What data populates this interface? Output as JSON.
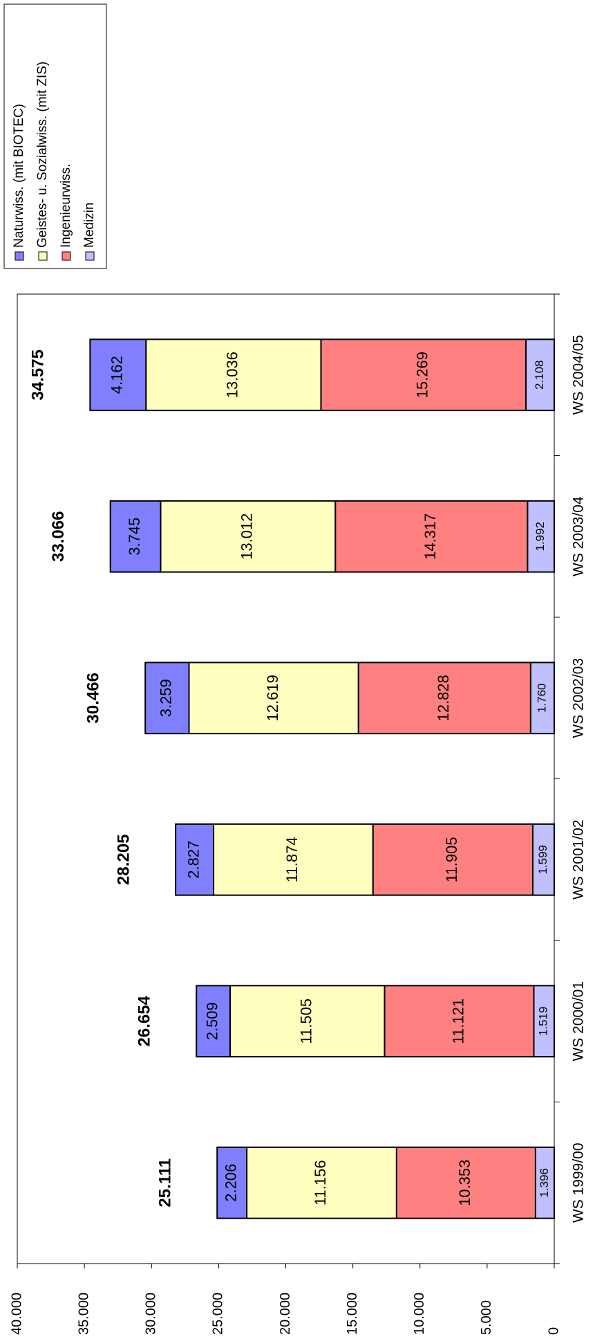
{
  "chart_data": {
    "type": "stacked_bar",
    "categories": [
      "WS 1999/00",
      "WS 2000/01",
      "WS 2001/02",
      "WS 2002/03",
      "WS 2003/04",
      "WS 2004/05"
    ],
    "series": [
      {
        "name": "Naturwiss. (mit BIOTEC)",
        "color": "#8080ff",
        "values": [
          2206,
          2509,
          2827,
          3259,
          3745,
          4162
        ],
        "value_labels": [
          "2.206",
          "2.509",
          "2.827",
          "3.259",
          "3.745",
          "4.162"
        ]
      },
      {
        "name": "Geistes- u. Sozialwiss. (mit ZIS)",
        "color": "#ffffc0",
        "values": [
          11156,
          11505,
          11874,
          12619,
          13012,
          13036
        ],
        "value_labels": [
          "11.156",
          "11.505",
          "11.874",
          "12.619",
          "13.012",
          "13.036"
        ]
      },
      {
        "name": "Ingenieurwiss.",
        "color": "#ff8080",
        "values": [
          10353,
          11121,
          11905,
          12828,
          14317,
          15269
        ],
        "value_labels": [
          "10.353",
          "11.121",
          "11.905",
          "12.828",
          "14.317",
          "15.269"
        ]
      },
      {
        "name": "Medizin",
        "color": "#c0c0ff",
        "values": [
          1396,
          1519,
          1599,
          1760,
          1992,
          2108
        ],
        "value_labels": [
          "1.396",
          "1.519",
          "1.599",
          "1.760",
          "1.992",
          "2.108"
        ]
      }
    ],
    "totals": {
      "values": [
        25111,
        26654,
        28205,
        30466,
        33066,
        34575
      ],
      "value_labels": [
        "25.111",
        "26.654",
        "28.205",
        "30.466",
        "33.066",
        "34.575"
      ]
    },
    "ylim": [
      0,
      40000
    ],
    "yticks": [
      0,
      {
        "value": 5000,
        "label": "5.000"
      },
      {
        "value": 10000,
        "label": "10.000"
      },
      {
        "value": 15000,
        "label": "15.000"
      },
      {
        "value": 20000,
        "label": "20.000"
      },
      {
        "value": 25000,
        "label": "25.000"
      },
      {
        "value": 30000,
        "label": "30.000"
      },
      {
        "value": 35000,
        "label": "35.000"
      },
      {
        "value": 40000,
        "label": "40.000"
      }
    ],
    "grid": false,
    "legend": "top-right"
  }
}
